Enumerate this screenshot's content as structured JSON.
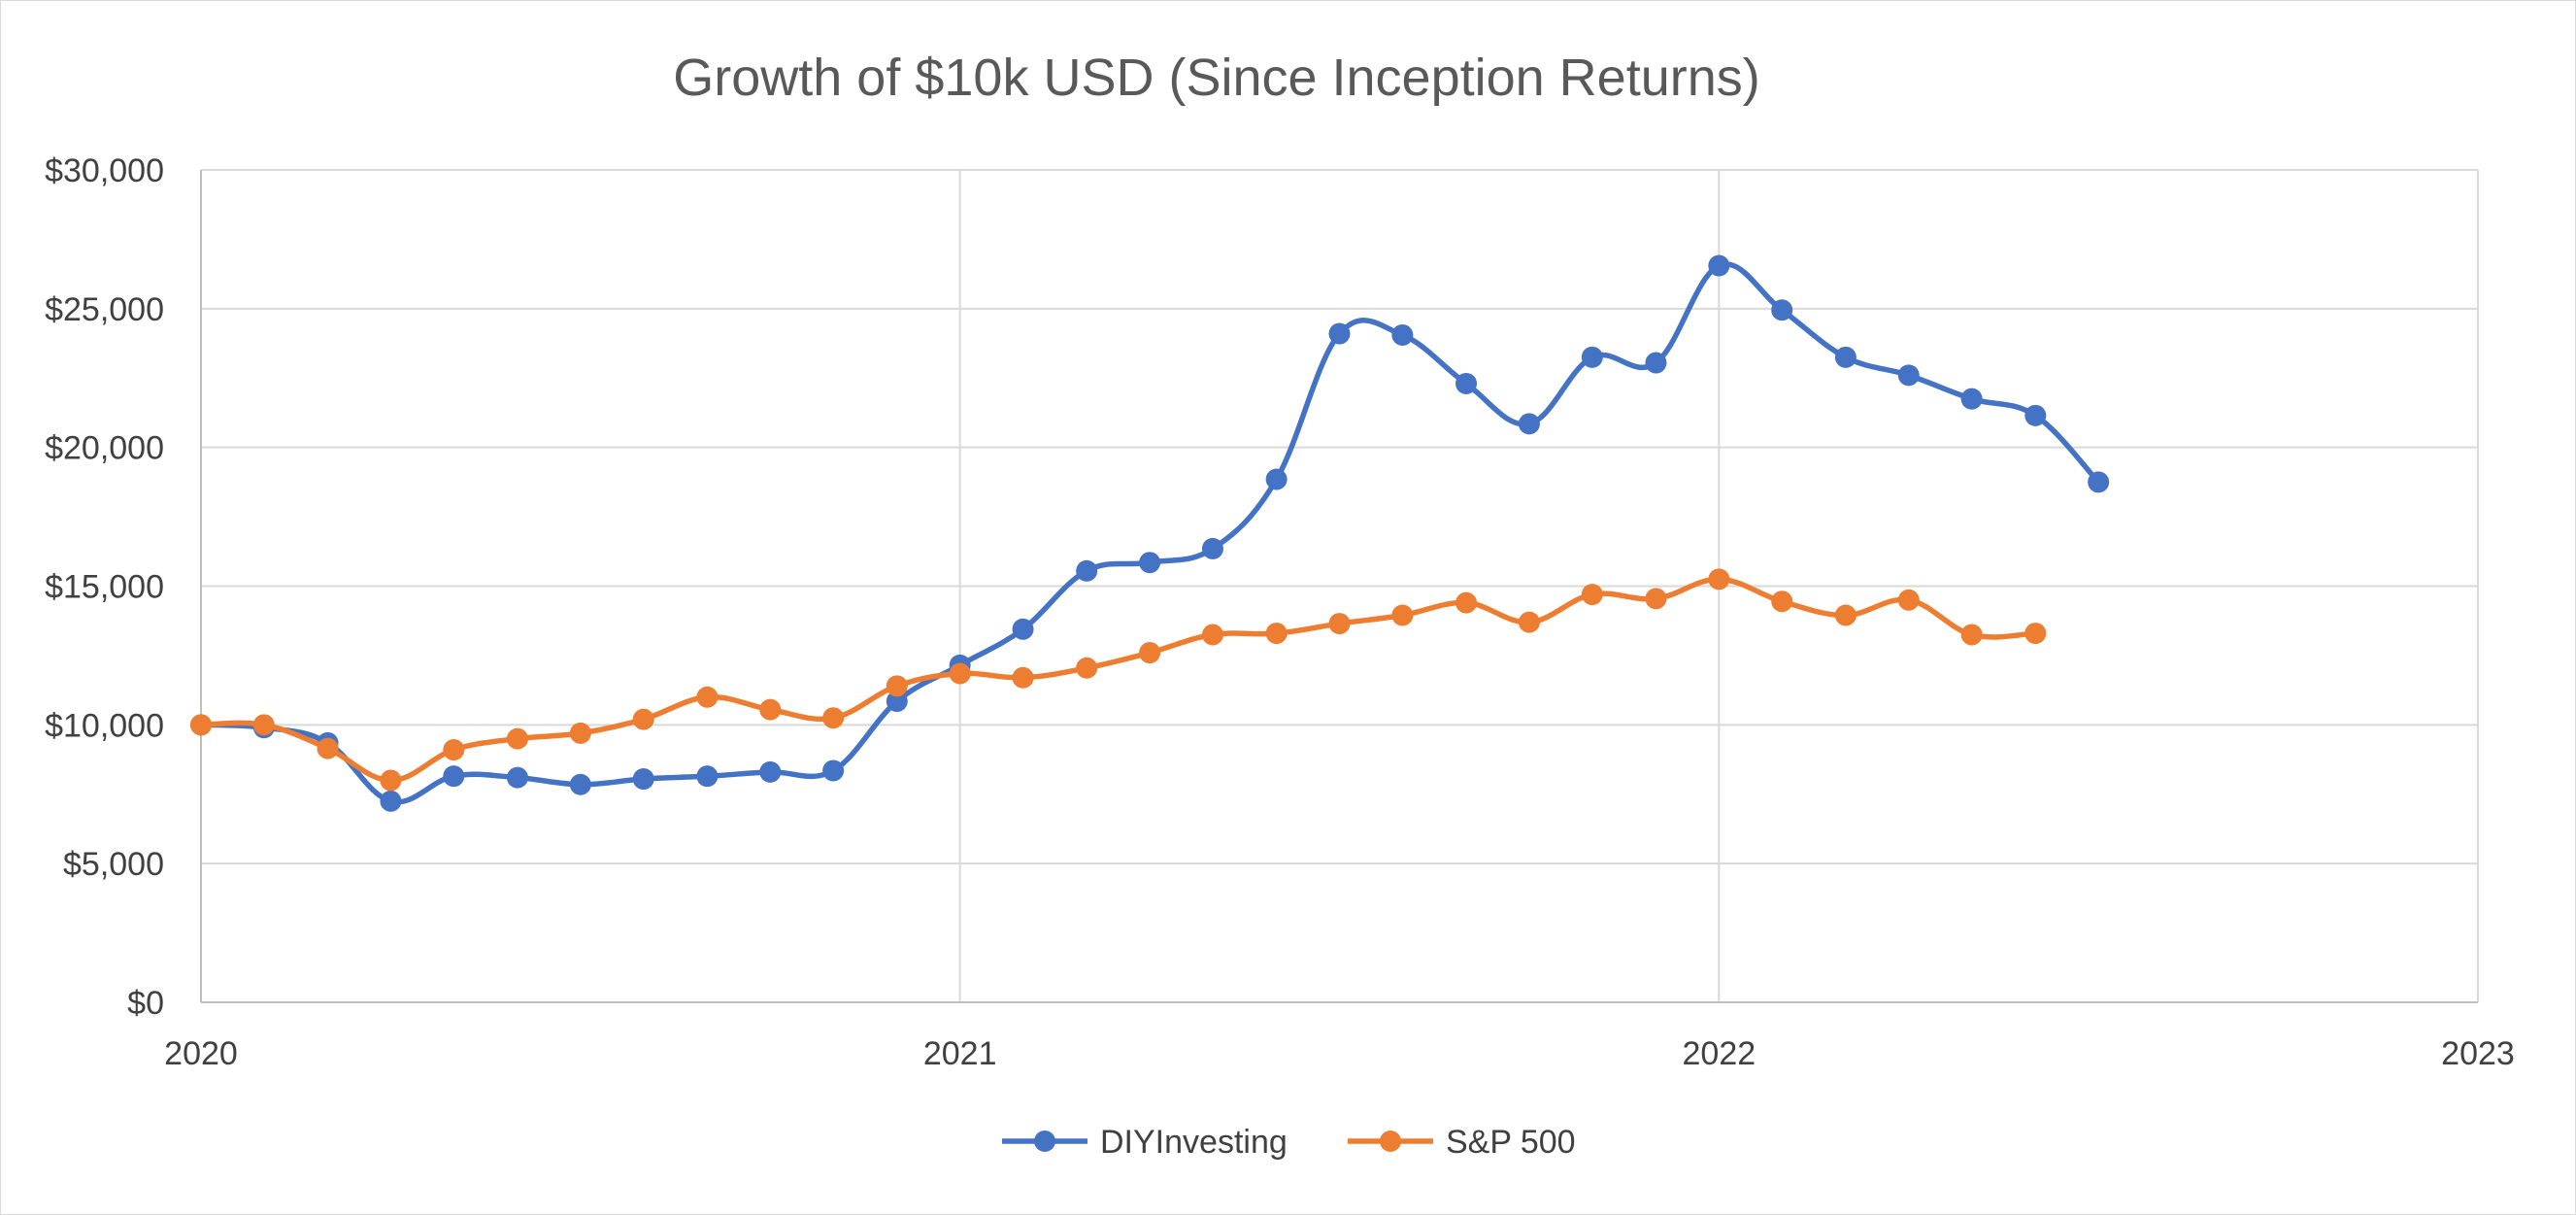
{
  "chart_data": {
    "type": "line",
    "title": "Growth of $10k USD (Since Inception Returns)",
    "xlabel": "",
    "ylabel": "",
    "xlim": [
      2020,
      2023
    ],
    "ylim": [
      0,
      30000
    ],
    "x_ticks": [
      2020,
      2021,
      2022,
      2023
    ],
    "x_tick_labels": [
      "2020",
      "2021",
      "2022",
      "2023"
    ],
    "y_ticks": [
      0,
      5000,
      10000,
      15000,
      20000,
      25000,
      30000
    ],
    "y_tick_labels": [
      "$0",
      "$5,000",
      "$10,000",
      "$15,000",
      "$20,000",
      "$25,000",
      "$30,000"
    ],
    "grid": true,
    "legend_position": "bottom",
    "series": [
      {
        "name": "DIYInvesting",
        "color": "#4472c4",
        "x": [
          2020.0,
          2020.083,
          2020.167,
          2020.25,
          2020.333,
          2020.417,
          2020.5,
          2020.583,
          2020.667,
          2020.75,
          2020.833,
          2020.917,
          2021.0,
          2021.083,
          2021.167,
          2021.25,
          2021.333,
          2021.417,
          2021.5,
          2021.583,
          2021.667,
          2021.75,
          2021.833,
          2021.917,
          2022.0,
          2022.083,
          2022.167,
          2022.25,
          2022.333,
          2022.417,
          2022.5
        ],
        "y": [
          10000,
          9900,
          9350,
          7250,
          8150,
          8100,
          7850,
          8050,
          8150,
          8300,
          8350,
          10850,
          12150,
          13450,
          15550,
          15850,
          16350,
          18850,
          24100,
          24050,
          22300,
          20850,
          23250,
          23050,
          26550,
          24950,
          23250,
          22600,
          21750,
          21150,
          18750
        ]
      },
      {
        "name": "S&P 500",
        "color": "#ed7d31",
        "x": [
          2020.0,
          2020.083,
          2020.167,
          2020.25,
          2020.333,
          2020.417,
          2020.5,
          2020.583,
          2020.667,
          2020.75,
          2020.833,
          2020.917,
          2021.0,
          2021.083,
          2021.167,
          2021.25,
          2021.333,
          2021.417,
          2021.5,
          2021.583,
          2021.667,
          2021.75,
          2021.833,
          2021.917,
          2022.0,
          2022.083,
          2022.167,
          2022.25,
          2022.333,
          2022.417
        ],
        "y": [
          10000,
          10000,
          9150,
          8000,
          9100,
          9500,
          9700,
          10200,
          11000,
          10550,
          10250,
          11400,
          11850,
          11700,
          12050,
          12600,
          13250,
          13300,
          13650,
          13950,
          14400,
          13700,
          14700,
          14550,
          15250,
          14450,
          13950,
          14500,
          13250,
          13300
        ]
      }
    ]
  }
}
